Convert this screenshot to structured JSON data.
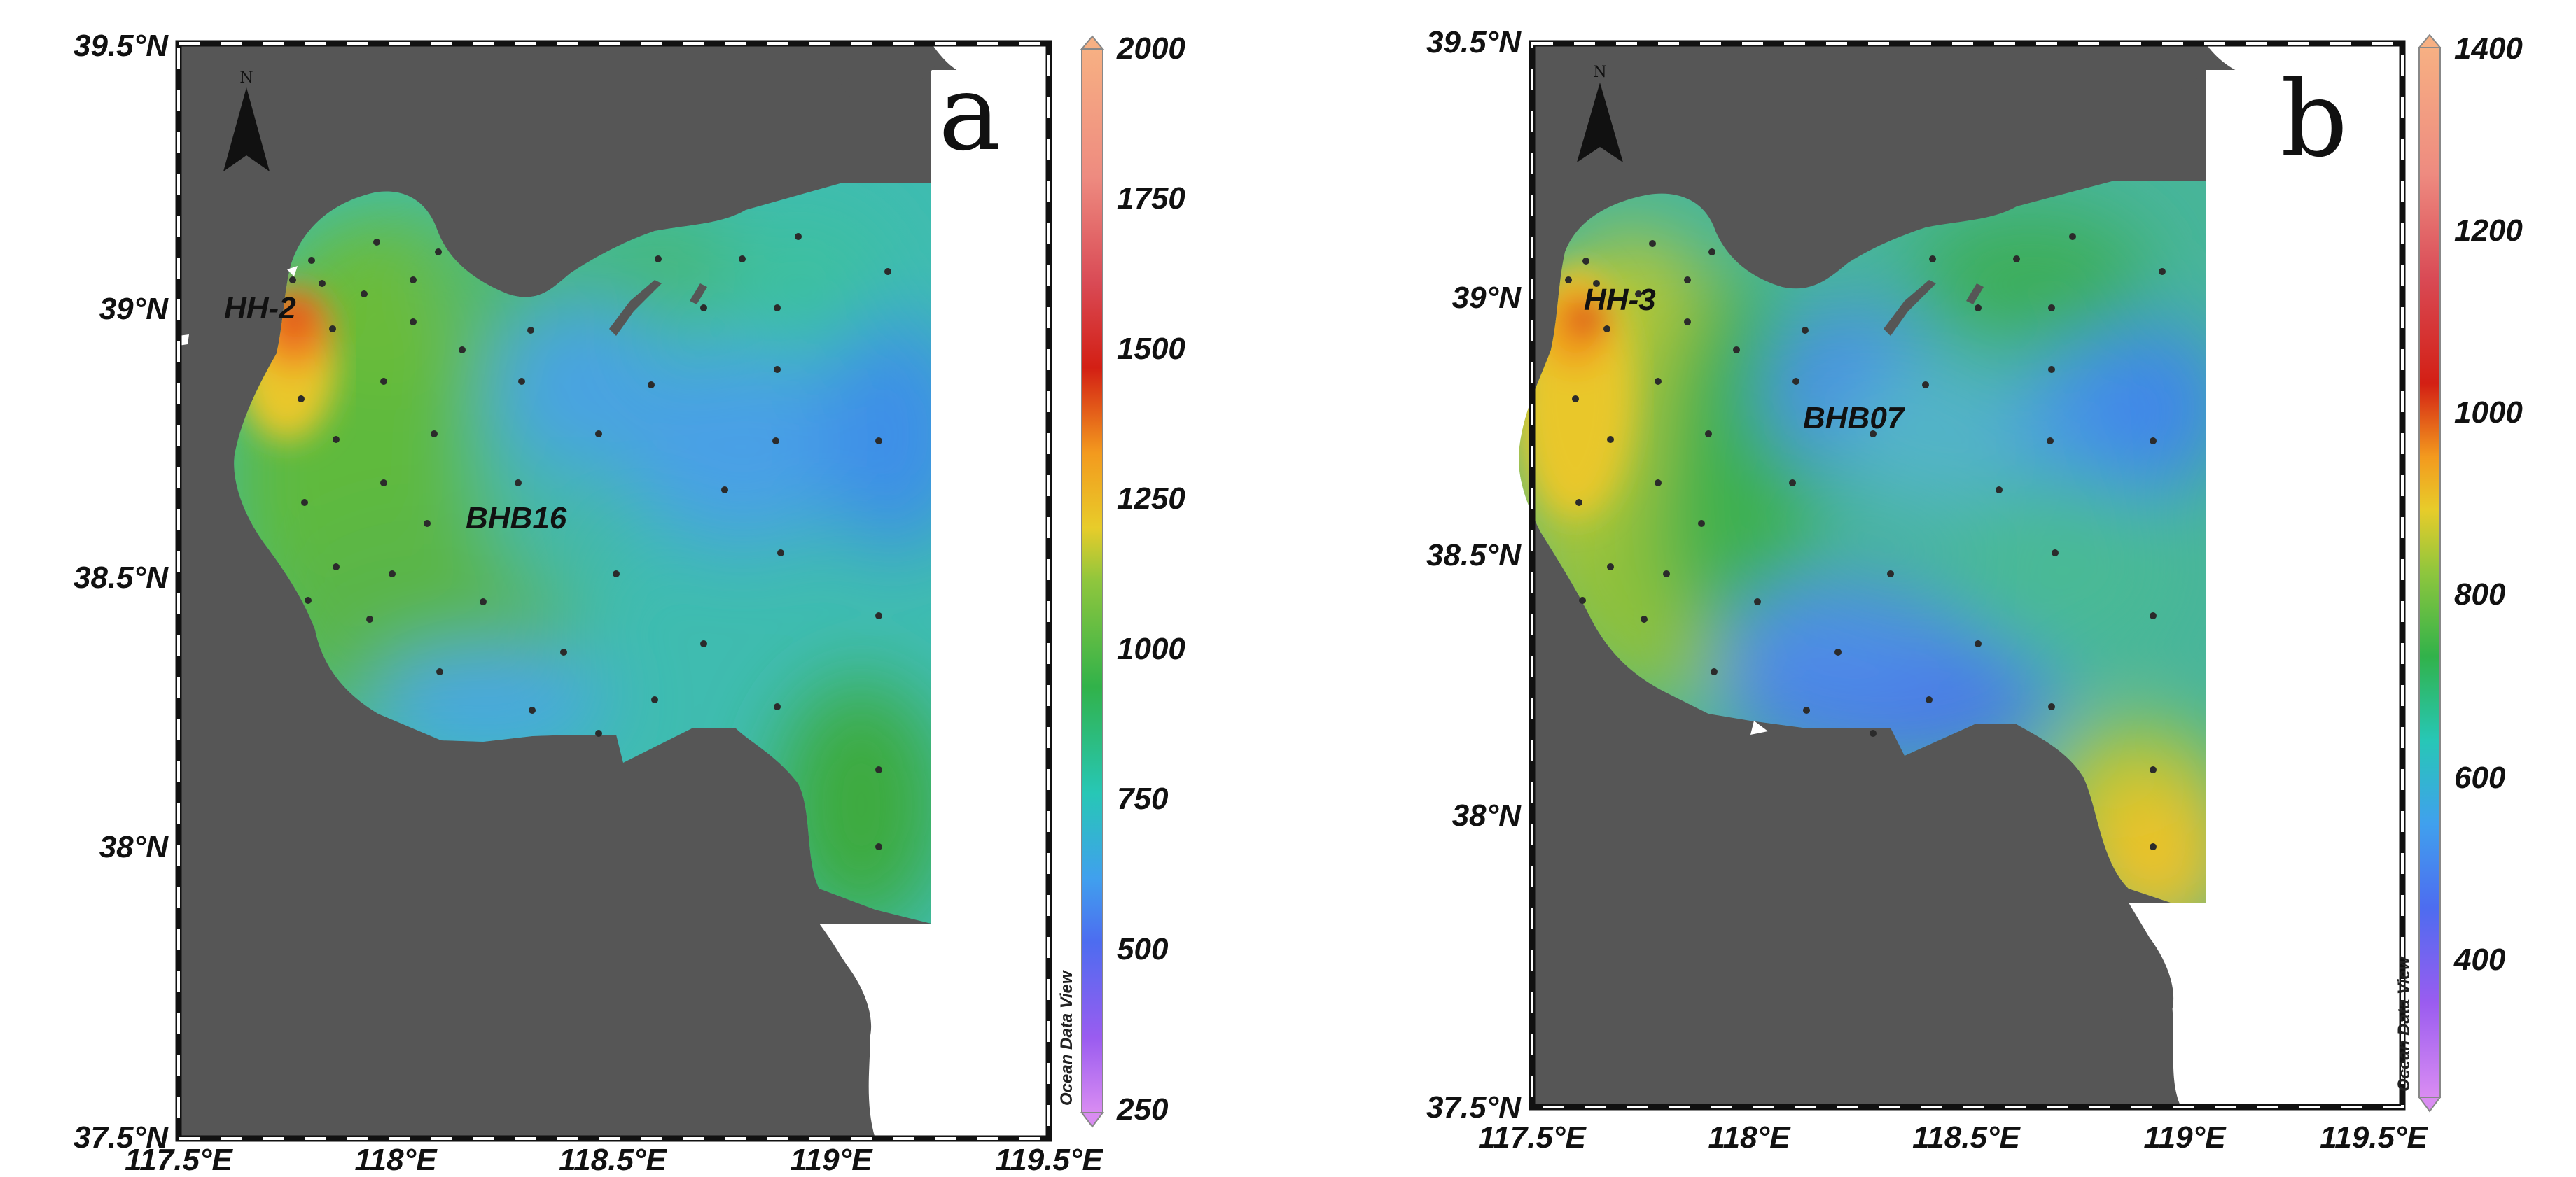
{
  "panels": [
    {
      "id": "a",
      "letter": "a",
      "station_labels": [
        {
          "text": "HH-2"
        },
        {
          "text": "BHB16"
        }
      ],
      "lat_ticks": [
        "39.5°N",
        "39°N",
        "38.5°N",
        "38°N",
        "37.5°N"
      ],
      "lon_ticks": [
        "117.5°E",
        "118°E",
        "118.5°E",
        "119°E",
        "119.5°E"
      ],
      "colorbar": {
        "min": 250,
        "max": 2000,
        "ticks": [
          "2000",
          "1750",
          "1500",
          "1250",
          "1000",
          "750",
          "500",
          "250"
        ],
        "credit": "Ocean Data View"
      }
    },
    {
      "id": "b",
      "letter": "b",
      "station_labels": [
        {
          "text": "HH-3"
        },
        {
          "text": "BHB07"
        }
      ],
      "lat_ticks": [
        "39.5°N",
        "39°N",
        "38.5°N",
        "38°N",
        "37.5°N"
      ],
      "lon_ticks": [
        "117.5°E",
        "118°E",
        "118.5°E",
        "119°E",
        "119.5°E"
      ],
      "colorbar": {
        "min": 300,
        "max": 1400,
        "ticks": [
          "1400",
          "1200",
          "1000",
          "800",
          "600",
          "400"
        ],
        "credit": "Ocean Data View"
      }
    }
  ],
  "north_arrow_letter": "N",
  "colors": {
    "land": "#565656",
    "frame": "#111111",
    "station_dot": "#2b2b2b"
  }
}
